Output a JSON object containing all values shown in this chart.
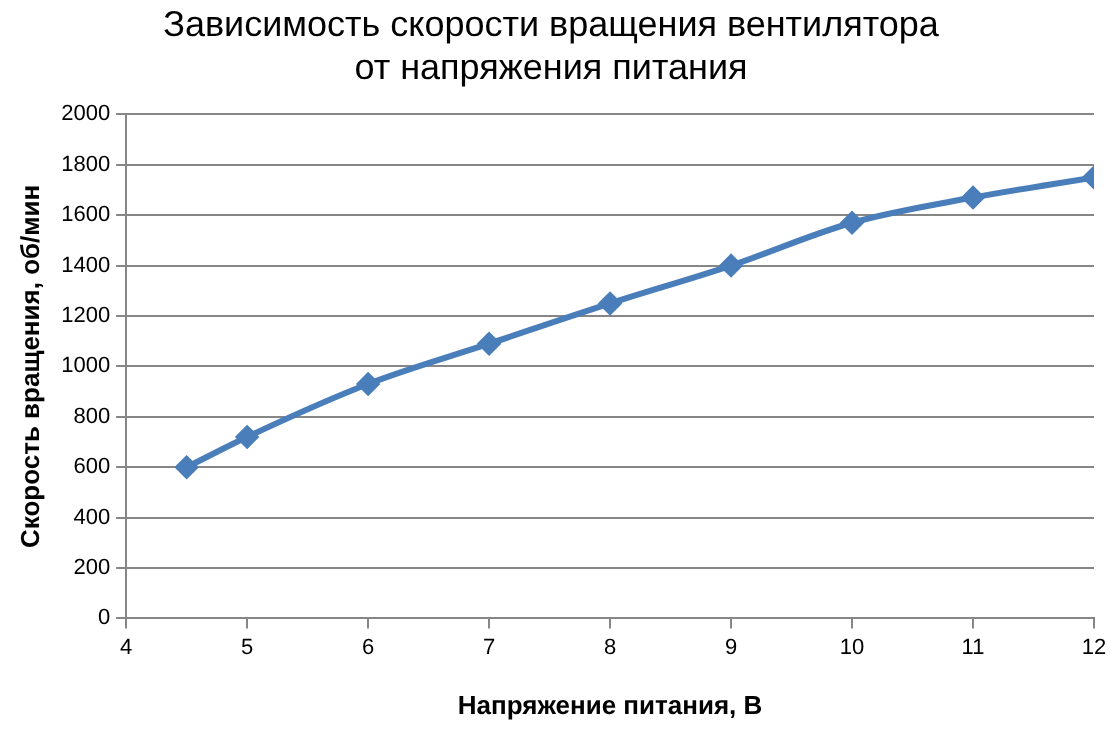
{
  "chart_data": {
    "type": "line",
    "title": "Зависимость скорости вращения вентилятора\nот напряжения питания",
    "xlabel": "Напряжение питания, В",
    "ylabel": "Скорость вращения, об/мин",
    "x": [
      4.5,
      5,
      6,
      7,
      8,
      9,
      10,
      11,
      12
    ],
    "series": [
      {
        "color": "#4a7ebb",
        "values": [
          600,
          720,
          930,
          1090,
          1250,
          1400,
          1570,
          1670,
          1750
        ]
      }
    ],
    "xlim": [
      4,
      12
    ],
    "xticks": [
      4,
      5,
      6,
      7,
      8,
      9,
      10,
      11,
      12
    ],
    "ylim": [
      0,
      2000
    ],
    "yticks": [
      0,
      200,
      400,
      600,
      800,
      1000,
      1200,
      1400,
      1600,
      1800,
      2000
    ],
    "grid": "y",
    "legend": false,
    "marker": "diamond",
    "line_style": "solid"
  }
}
